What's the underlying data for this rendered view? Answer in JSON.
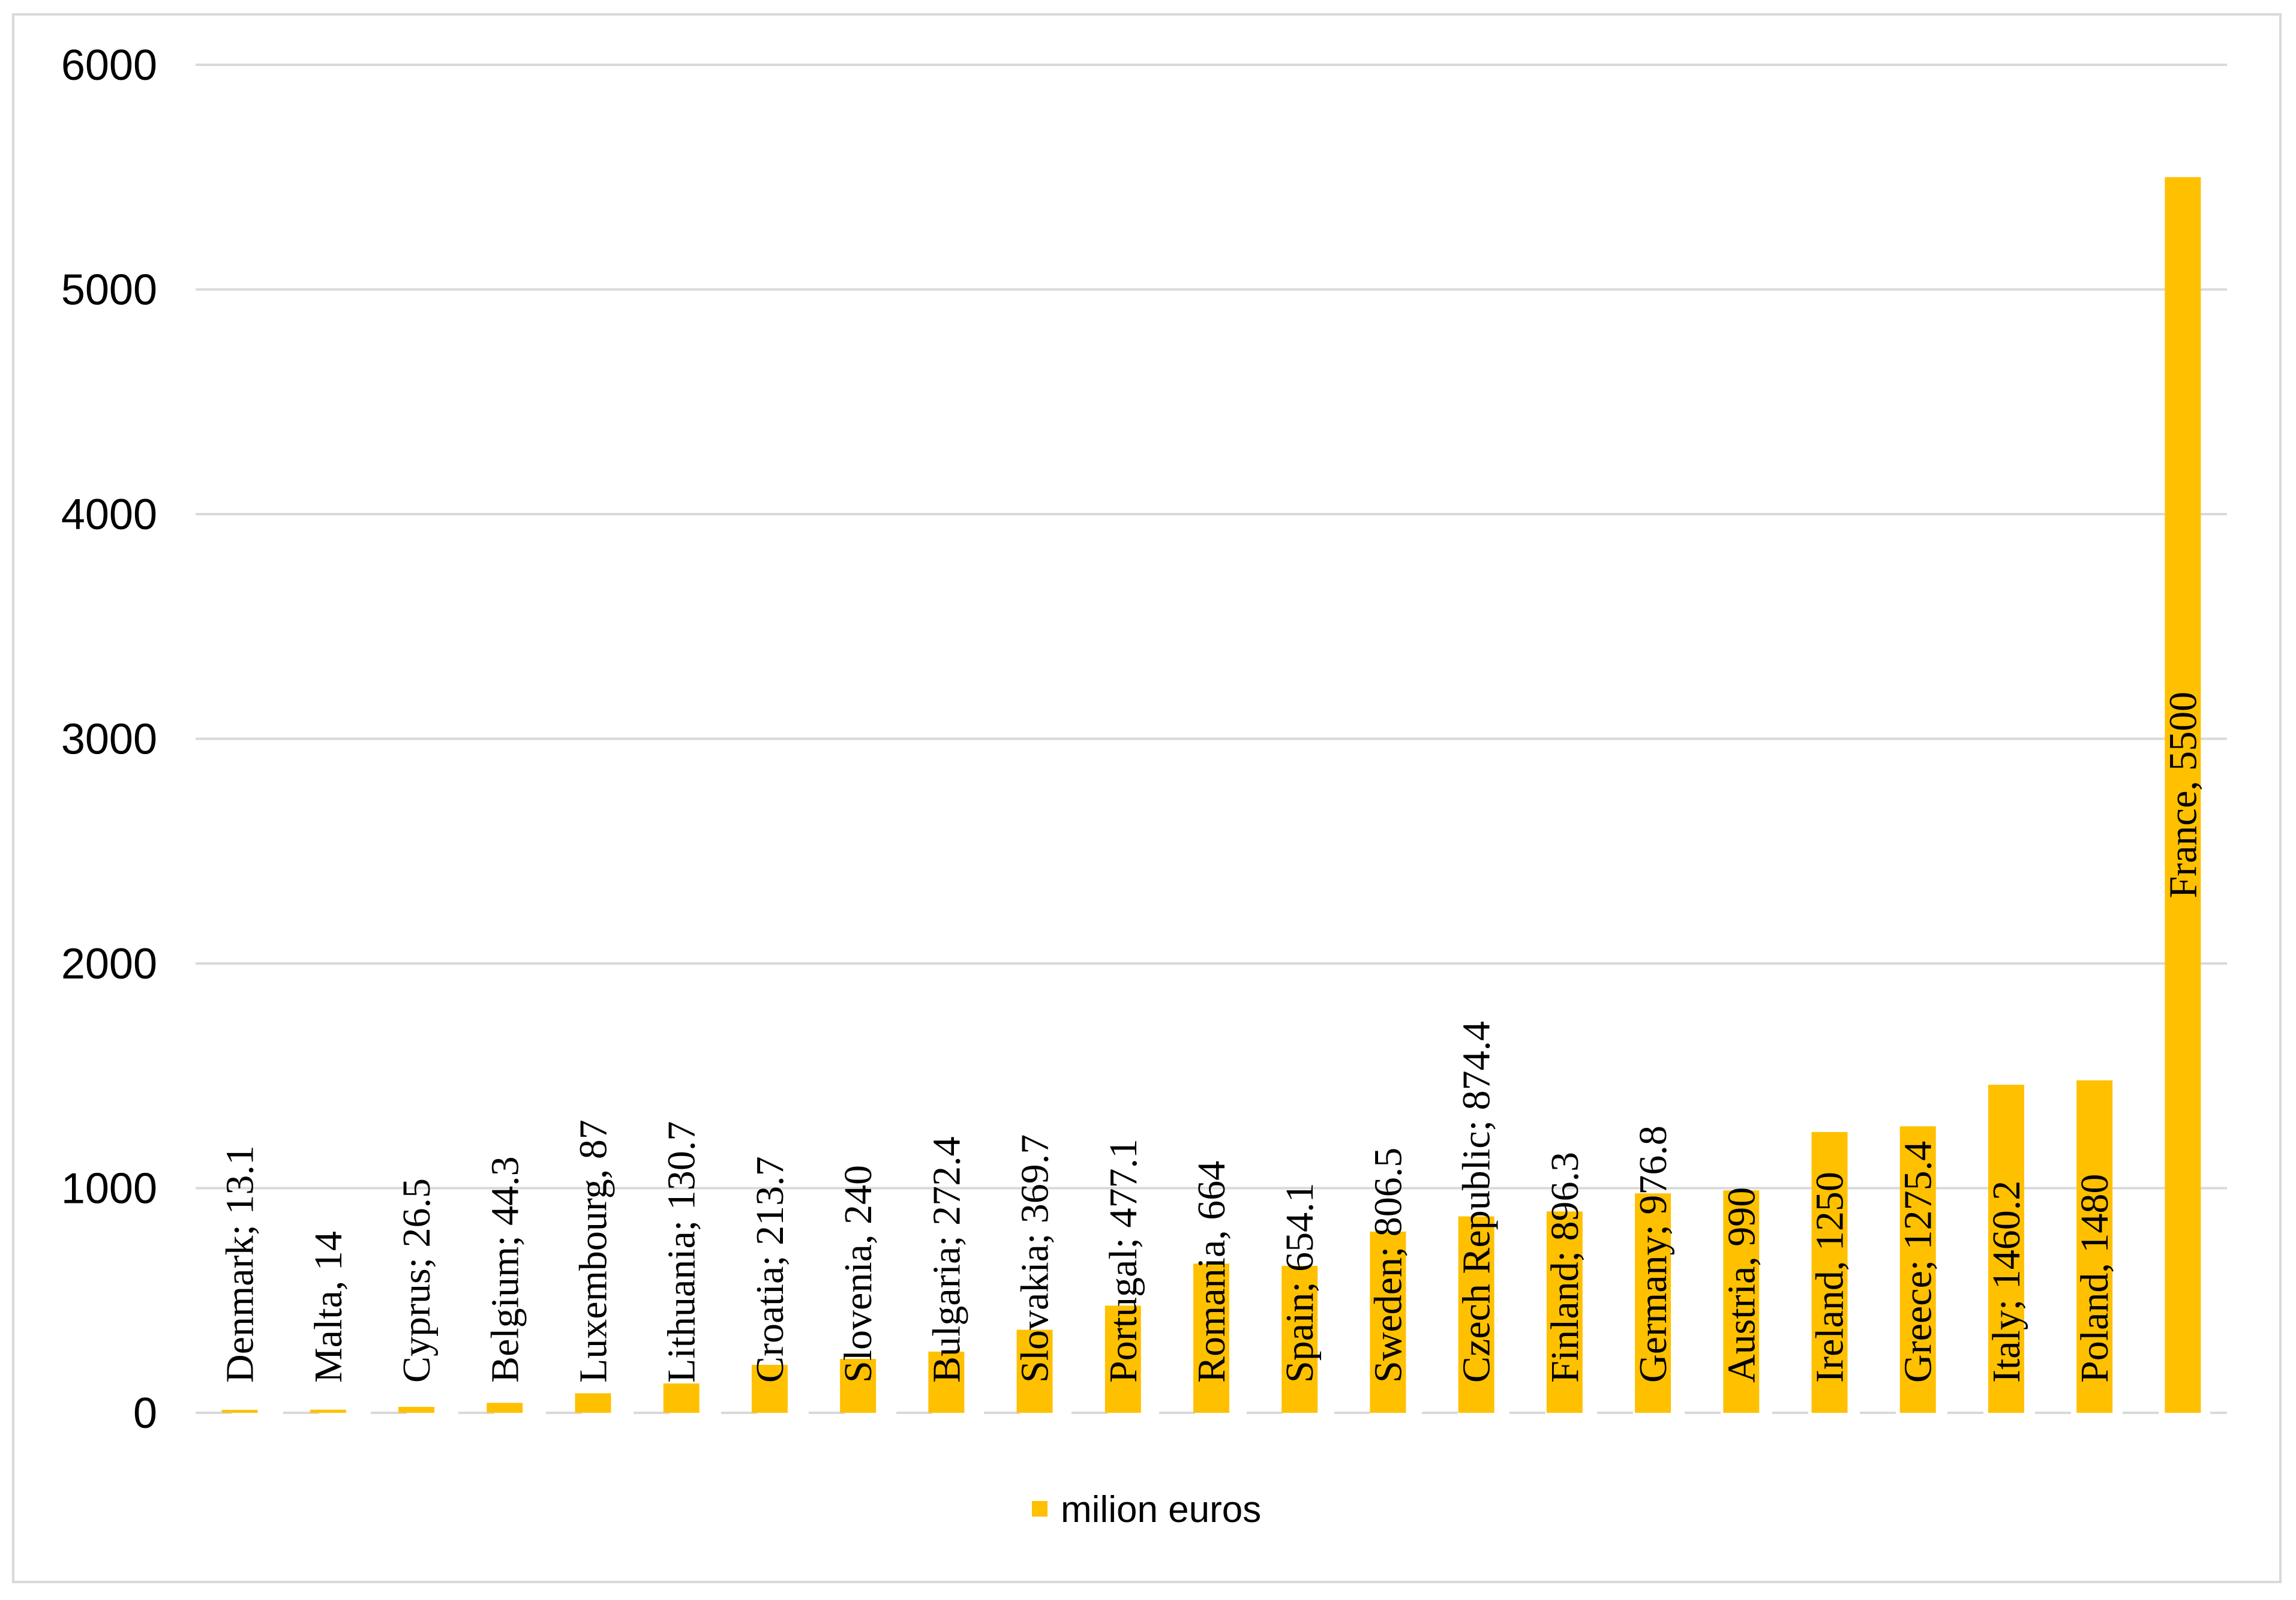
{
  "chart_data": {
    "type": "bar",
    "categories": [
      "Denmark",
      "Malta",
      "Cyprus",
      "Belgium",
      "Luxembourg",
      "Lithuania",
      "Croatia",
      "Slovenia",
      "Bulgaria",
      "Slovakia",
      "Portugal",
      "Romania",
      "Spain",
      "Sweden",
      "Czech Republic",
      "Finland",
      "Germany",
      "Austria",
      "Ireland",
      "Greece",
      "Italy",
      "Poland",
      "France"
    ],
    "series": [
      {
        "name": "milion euros",
        "color": "#ffc000",
        "values": [
          13.1,
          14,
          26.5,
          44.3,
          87,
          130.7,
          213.7,
          240,
          272.4,
          369.7,
          477.1,
          664,
          654.1,
          806.5,
          874.4,
          896.3,
          976.8,
          990,
          1250,
          1275.4,
          1460.2,
          1480,
          5500
        ]
      }
    ],
    "data_labels": [
      "Denmark; 13.1",
      "Malta, 14",
      "Cyprus; 26.5",
      "Belgium; 44.3",
      "Luxembourg, 87",
      "Lithuania; 130.7",
      "Croatia; 213.7",
      "Slovenia, 240",
      "Bulgaria; 272.4",
      "Slovakia; 369.7",
      "Portugal; 477.1",
      "Romania, 664",
      "Spain; 654.1",
      "Sweden; 806.5",
      "Czech Republic; 874.4",
      "Finland; 896.3",
      "Germany; 976.8",
      "Austria, 990",
      "Ireland, 1250",
      "Greece; 1275.4",
      "Italy; 1460.2",
      "Poland, 1480",
      "France, 5500"
    ],
    "y_ticks": [
      "0",
      "1000",
      "2000",
      "3000",
      "4000",
      "5000",
      "6000"
    ],
    "ylim": [
      0,
      6000
    ],
    "grid": true,
    "legend_position": "bottom",
    "gridline_color": "#d9d9d9"
  }
}
